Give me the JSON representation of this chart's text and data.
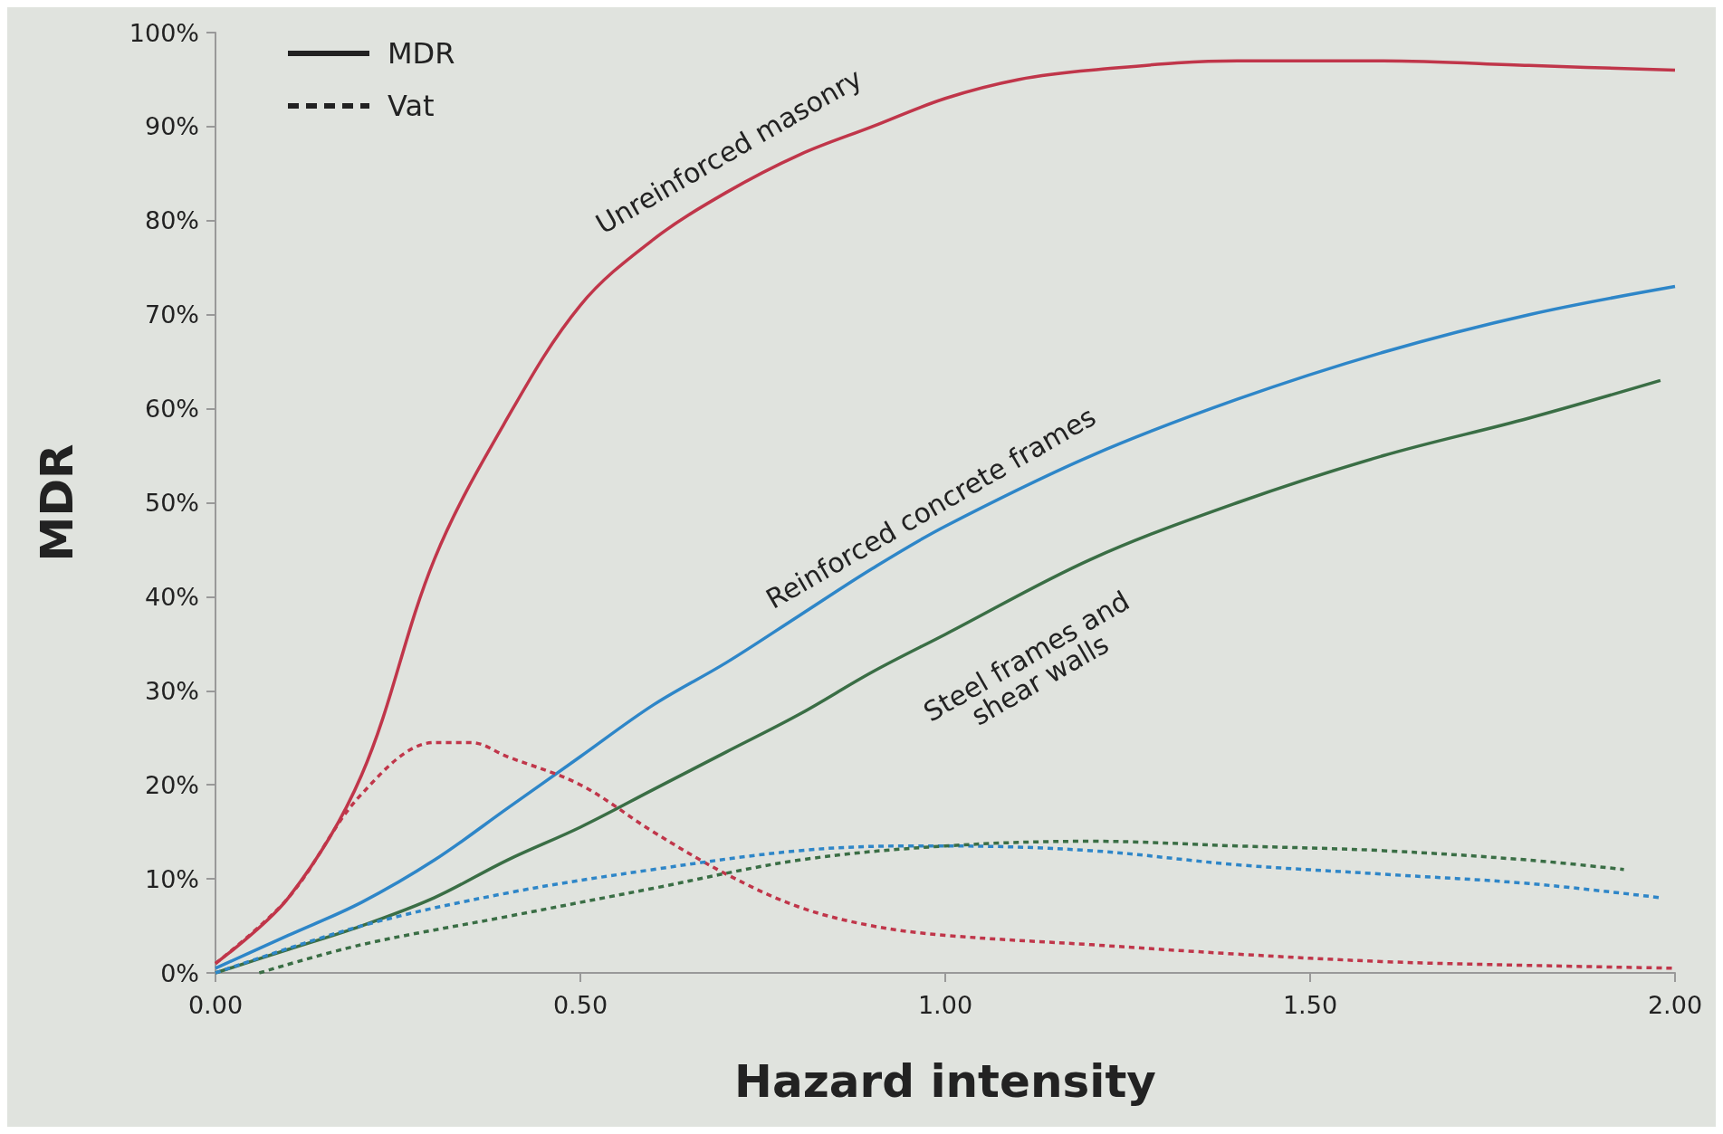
{
  "chart_data": {
    "type": "line",
    "xlabel": "Hazard intensity",
    "ylabel": "MDR",
    "xlim": [
      0,
      2
    ],
    "ylim": [
      0,
      100
    ],
    "xticks": [
      {
        "value": 0,
        "label": "0.00"
      },
      {
        "value": 0.5,
        "label": "0.50"
      },
      {
        "value": 1,
        "label": "1.00"
      },
      {
        "value": 1.5,
        "label": "1.50"
      },
      {
        "value": 2,
        "label": "2.00"
      }
    ],
    "yticks": [
      {
        "value": 0,
        "label": "0%"
      },
      {
        "value": 10,
        "label": "10%"
      },
      {
        "value": 20,
        "label": "20%"
      },
      {
        "value": 30,
        "label": "30%"
      },
      {
        "value": 40,
        "label": "40%"
      },
      {
        "value": 50,
        "label": "50%"
      },
      {
        "value": 60,
        "label": "60%"
      },
      {
        "value": 70,
        "label": "70%"
      },
      {
        "value": 80,
        "label": "80%"
      },
      {
        "value": 90,
        "label": "90%"
      },
      {
        "value": 100,
        "label": "100%"
      }
    ],
    "grid": false,
    "marker": "none",
    "series": [
      {
        "color": "#c0364a",
        "line_style": "solid",
        "x": [
          0,
          0.1,
          0.2,
          0.3,
          0.4,
          0.5,
          0.6,
          0.7,
          0.8,
          0.9,
          1.0,
          1.1,
          1.2,
          1.4,
          1.6,
          1.8,
          2.0
        ],
        "values": [
          1,
          8,
          21,
          44,
          59,
          71,
          78,
          83,
          87,
          90,
          93,
          95,
          96,
          97,
          97,
          96.5,
          96
        ]
      },
      {
        "color": "#2e86c8",
        "line_style": "solid",
        "x": [
          0,
          0.1,
          0.2,
          0.3,
          0.4,
          0.5,
          0.6,
          0.7,
          0.8,
          0.9,
          1.0,
          1.2,
          1.4,
          1.6,
          1.8,
          2.0
        ],
        "values": [
          0.5,
          4,
          7.5,
          12,
          17.5,
          23,
          28.5,
          33,
          38,
          43,
          47.5,
          55,
          61,
          66,
          70,
          73
        ]
      },
      {
        "color": "#3a6e45",
        "line_style": "solid",
        "x": [
          0,
          0.1,
          0.2,
          0.3,
          0.4,
          0.5,
          0.6,
          0.7,
          0.8,
          0.9,
          1.0,
          1.2,
          1.4,
          1.6,
          1.8,
          1.98
        ],
        "values": [
          0,
          2.5,
          5,
          8,
          12,
          15.5,
          19.5,
          23.5,
          27.5,
          32,
          36,
          44,
          50,
          55,
          59,
          63
        ]
      },
      {
        "color": "#c0364a",
        "line_style": "dashed",
        "x": [
          0,
          0.1,
          0.2,
          0.3,
          0.35,
          0.4,
          0.5,
          0.6,
          0.7,
          0.8,
          0.9,
          1.0,
          1.2,
          1.4,
          1.6,
          1.8,
          2.0
        ],
        "values": [
          1,
          8,
          19,
          24.5,
          24.5,
          23,
          20,
          15,
          10.5,
          7,
          5,
          4,
          3,
          2,
          1.2,
          0.8,
          0.5
        ]
      },
      {
        "color": "#2e86c8",
        "line_style": "dashed",
        "x": [
          0,
          0.2,
          0.4,
          0.6,
          0.8,
          0.95,
          1.0,
          1.2,
          1.4,
          1.6,
          1.8,
          1.98
        ],
        "values": [
          0,
          5,
          8.5,
          11,
          13,
          13.5,
          13.5,
          13,
          11.5,
          10.5,
          9.5,
          8
        ]
      },
      {
        "color": "#3a6e45",
        "line_style": "dashed",
        "x": [
          0.06,
          0.2,
          0.4,
          0.6,
          0.8,
          1.0,
          1.2,
          1.4,
          1.6,
          1.8,
          1.93
        ],
        "values": [
          0,
          3,
          6,
          9,
          12,
          13.5,
          14,
          13.5,
          13,
          12,
          11
        ]
      }
    ],
    "annotations": [
      "Unreinforced masonry",
      "Reinforced concrete frames",
      "Steel frames and\nshear walls",
      "MDR",
      "Vat"
    ]
  }
}
